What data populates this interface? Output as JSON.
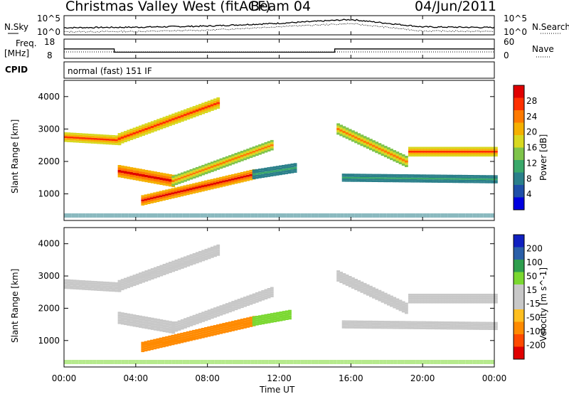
{
  "header": {
    "station": "Christmas Valley West (fitACF)",
    "beam": "Beam 04",
    "date": "04/Jun/2011"
  },
  "top_panels": {
    "nsky_label": "N.Sky",
    "nsearch_label": "N.Search",
    "nsky_ticks": [
      "10^5",
      "10^0"
    ],
    "nsearch_ticks": [
      "10^5",
      "10^0"
    ],
    "freq_label_line1": "Freq.",
    "freq_label_line2": "[MHz]",
    "freq_ticks": [
      "18",
      "8"
    ],
    "nave_label": "Nave",
    "nave_ticks": [
      "60",
      "0"
    ],
    "cpid_label": "CPID",
    "cpid_text": "normal (fast) 151 IF"
  },
  "colors": {
    "power": [
      "#0000e0",
      "#1f4fa8",
      "#2a7f8a",
      "#3aa86a",
      "#7ec44a",
      "#d8d820",
      "#f5b000",
      "#ff7a00",
      "#ff3000",
      "#e00000"
    ],
    "velocity": [
      "#e00000",
      "#ff4a00",
      "#ff8a00",
      "#ffbf20",
      "#c8c8c8",
      "#c8c8c8",
      "#7ad830",
      "#2e9e4e",
      "#2a5fa8",
      "#1020c0"
    ]
  },
  "chart_data": [
    {
      "type": "line",
      "title": "N.Sky / N.Search",
      "x": [
        "00:00",
        "04:00",
        "08:00",
        "12:00",
        "16:00",
        "20:00",
        "00:00"
      ],
      "series": [
        {
          "name": "N.Sky",
          "y_relative": [
            0.35,
            0.38,
            0.45,
            0.62,
            0.85,
            0.4,
            0.36
          ]
        },
        {
          "name": "N.Search",
          "y_relative": [
            0.1,
            0.12,
            0.2,
            0.42,
            0.6,
            0.15,
            0.12
          ]
        }
      ]
    },
    {
      "type": "line",
      "title": "Freq / Nave",
      "x_hours": [
        0,
        2.8,
        2.8,
        15.1,
        15.1,
        24
      ],
      "series": [
        {
          "name": "Freq. [MHz]",
          "values": [
            12,
            12,
            10,
            10,
            12,
            12
          ]
        },
        {
          "name": "Nave",
          "values": [
            8,
            8,
            8,
            8,
            8,
            8
          ]
        }
      ]
    },
    {
      "type": "heatmap",
      "panel": "power",
      "xlabel": "",
      "ylabel": "Slant Range [km]",
      "colorbar_label": "Power [dB]",
      "colorbar_ticks": [
        "28",
        "24",
        "20",
        "16",
        "12",
        "8",
        "4"
      ],
      "x_ticks": [
        "00:00",
        "04:00",
        "08:00",
        "12:00",
        "16:00",
        "20:00",
        "00:00"
      ],
      "y_ticks": [
        "4000",
        "3000",
        "2000",
        "1000"
      ],
      "xlim_hours": [
        0,
        24
      ],
      "ylim_km": [
        180,
        4500
      ],
      "bands": [
        {
          "t": [
            0.0,
            3.0
          ],
          "r_center": [
            2750,
            2650
          ],
          "width": 300,
          "level": 0.85
        },
        {
          "t": [
            3.0,
            8.5
          ],
          "r_center": [
            2700,
            3800
          ],
          "width": 350,
          "level": 0.8
        },
        {
          "t": [
            3.0,
            6.0
          ],
          "r_center": [
            1700,
            1400
          ],
          "width": 380,
          "level": 0.95
        },
        {
          "t": [
            6.0,
            11.5
          ],
          "r_center": [
            1400,
            2500
          ],
          "width": 320,
          "level": 0.7
        },
        {
          "t": [
            4.3,
            10.5
          ],
          "r_center": [
            800,
            1600
          ],
          "width": 320,
          "level": 0.95
        },
        {
          "t": [
            10.5,
            12.8
          ],
          "r_center": [
            1600,
            1800
          ],
          "width": 300,
          "level": 0.35
        },
        {
          "t": [
            15.2,
            19.0
          ],
          "r_center": [
            3000,
            2000
          ],
          "width": 350,
          "level": 0.7
        },
        {
          "t": [
            19.2,
            24.0
          ],
          "r_center": [
            2300,
            2300
          ],
          "width": 300,
          "level": 0.8
        },
        {
          "t": [
            15.5,
            24.0
          ],
          "r_center": [
            1500,
            1450
          ],
          "width": 250,
          "level": 0.35
        }
      ]
    },
    {
      "type": "heatmap",
      "panel": "velocity",
      "xlabel": "Time UT",
      "ylabel": "Slant Range [km]",
      "colorbar_label": "Velocity [m s^-1]",
      "colorbar_ticks": [
        "200",
        "100",
        "50",
        "15",
        "-15",
        "-50",
        "-100",
        "-200"
      ],
      "x_ticks": [
        "00:00",
        "04:00",
        "08:00",
        "12:00",
        "16:00",
        "20:00",
        "00:00"
      ],
      "y_ticks": [
        "4000",
        "3000",
        "2000",
        "1000"
      ],
      "xlim_hours": [
        0,
        24
      ],
      "ylim_km": [
        180,
        4500
      ],
      "bands": [
        {
          "t": [
            0.0,
            3.0
          ],
          "r_center": [
            2750,
            2650
          ],
          "width": 300,
          "velocity": 0
        },
        {
          "t": [
            3.0,
            8.5
          ],
          "r_center": [
            2700,
            3800
          ],
          "width": 350,
          "velocity": 0
        },
        {
          "t": [
            3.0,
            6.0
          ],
          "r_center": [
            1700,
            1400
          ],
          "width": 380,
          "velocity": 0
        },
        {
          "t": [
            6.0,
            11.5
          ],
          "r_center": [
            1400,
            2500
          ],
          "width": 320,
          "velocity": 0
        },
        {
          "t": [
            4.3,
            10.5
          ],
          "r_center": [
            800,
            1600
          ],
          "width": 320,
          "velocity": -60
        },
        {
          "t": [
            10.5,
            12.5
          ],
          "r_center": [
            1600,
            1800
          ],
          "width": 300,
          "velocity": 40
        },
        {
          "t": [
            15.2,
            19.0
          ],
          "r_center": [
            3000,
            2000
          ],
          "width": 350,
          "velocity": 0
        },
        {
          "t": [
            19.2,
            24.0
          ],
          "r_center": [
            2300,
            2300
          ],
          "width": 300,
          "velocity": 0
        },
        {
          "t": [
            15.5,
            24.0
          ],
          "r_center": [
            1500,
            1450
          ],
          "width": 250,
          "velocity": 0
        }
      ]
    }
  ]
}
